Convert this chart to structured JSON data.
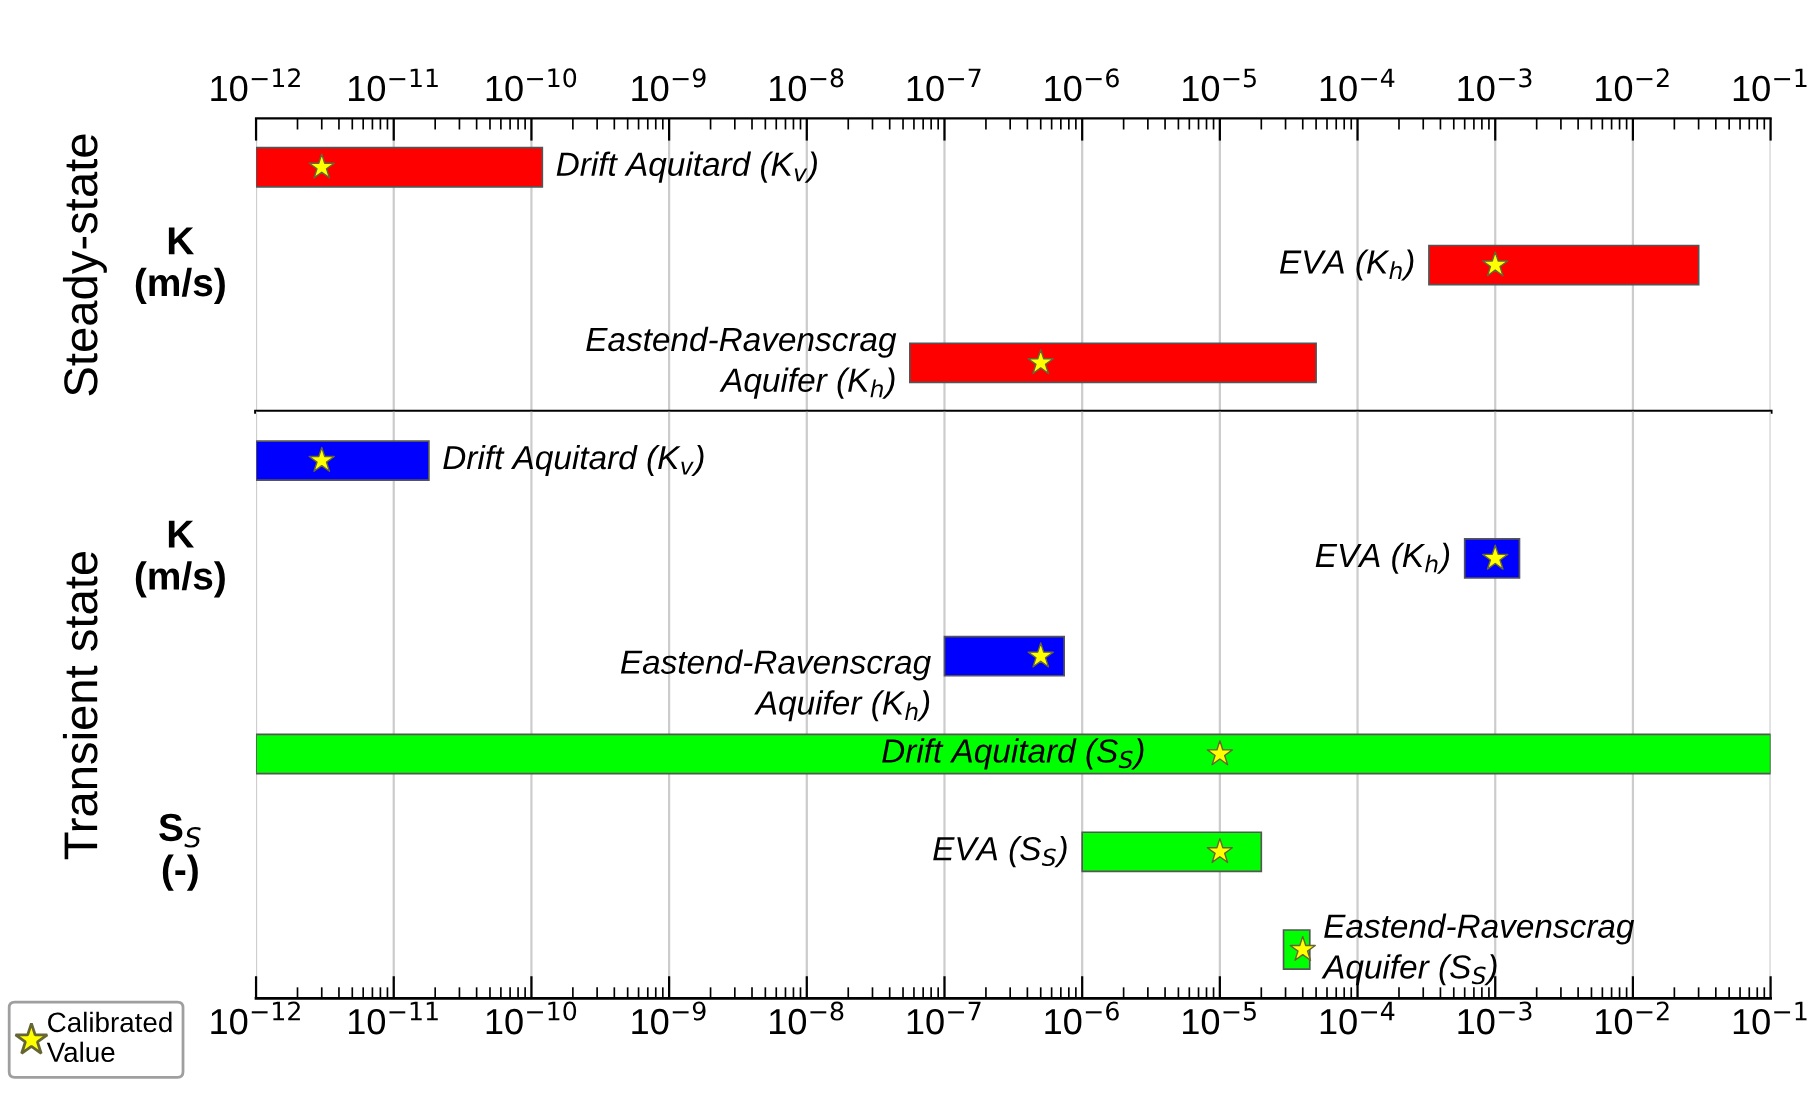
{
  "chart_data": [
    {
      "type": "bar",
      "orientation": "horizontal",
      "log": "x",
      "grid": "x",
      "marker": "star",
      "annotations": [
        "Steady-state",
        "K\n(m/s)"
      ],
      "categories": [
        "Drift Aquitard (K$_{v}$)",
        "EVA (K$_{h}$)",
        "Eastend-Ravenscrag\nAquifer (K$_{h}$)"
      ],
      "series": [
        {
          "type": "bar",
          "color": "#ff0000",
          "base": [
            1e-12,
            0.00033,
            5.6e-08
          ],
          "values": [
            1.19e-10,
            0.0297,
            4.994e-05
          ]
        },
        {
          "type": "scatter",
          "color": "#ffff00",
          "values": [
            3e-12,
            0.001,
            5e-07
          ]
        }
      ],
      "xlim": [
        1e-12,
        0.1
      ],
      "xticks": [
        {
          "value": 1e-12,
          "label": "10$^{−12}$"
        },
        {
          "value": 1e-11,
          "label": "10$^{−11}$"
        },
        {
          "value": 1e-10,
          "label": "10$^{−10}$"
        },
        {
          "value": 1e-09,
          "label": "10$^{−9}$"
        },
        {
          "value": 1e-08,
          "label": "10$^{−8}$"
        },
        {
          "value": 1e-07,
          "label": "10$^{−7}$"
        },
        {
          "value": 1e-06,
          "label": "10$^{−6}$"
        },
        {
          "value": 1e-05,
          "label": "10$^{−5}$"
        },
        {
          "value": 0.0001,
          "label": "10$^{−4}$"
        },
        {
          "value": 0.001,
          "label": "10$^{−3}$"
        },
        {
          "value": 0.01,
          "label": "10$^{−2}$"
        },
        {
          "value": 0.1,
          "label": "10$^{−1}$"
        }
      ]
    },
    {
      "type": "bar",
      "orientation": "horizontal",
      "log": "x",
      "grid": "x",
      "marker": "star",
      "legend": "bottom left",
      "annotations": [
        "Transient state",
        "K\n(m/s)",
        "S$_{S}$\n(-)"
      ],
      "categories": [
        "Drift Aquitard (K$_{v}$)",
        "EVA (K$_{h}$)",
        "Eastend-Ravenscrag\nAquifer (K$_{h}$)",
        "Drift Aquitard (S$_{S}$)",
        "EVA (S$_{S}$)",
        "Eastend-Ravenscrag\nAquifer (S$_{S}$)"
      ],
      "series": [
        {
          "type": "bar",
          "colors": [
            "#0000ff",
            "#0000ff",
            "#0000ff",
            "#00ff00",
            "#00ff00",
            "#00ff00"
          ],
          "base": [
            1e-12,
            0.0006,
            1e-07,
            1e-12,
            1e-06,
            2.9e-05
          ],
          "values": [
            1.7e-11,
            0.0009,
            6.4e-07,
            0.099999999999,
            1.9e-05,
            1.6e-05
          ]
        },
        {
          "type": "scatter",
          "name": "Calibrated\nValue",
          "color": "#ffff00",
          "values": [
            3e-12,
            0.001,
            5e-07,
            1e-05,
            1e-05,
            4e-05
          ]
        }
      ],
      "xlim": [
        1e-12,
        0.1
      ],
      "xticks": [
        {
          "value": 1e-12,
          "label": "10$^{−12}$"
        },
        {
          "value": 1e-11,
          "label": "10$^{−11}$"
        },
        {
          "value": 1e-10,
          "label": "10$^{−10}$"
        },
        {
          "value": 1e-09,
          "label": "10$^{−9}$"
        },
        {
          "value": 1e-08,
          "label": "10$^{−8}$"
        },
        {
          "value": 1e-07,
          "label": "10$^{−7}$"
        },
        {
          "value": 1e-06,
          "label": "10$^{−6}$"
        },
        {
          "value": 1e-05,
          "label": "10$^{−5}$"
        },
        {
          "value": 0.0001,
          "label": "10$^{−4}$"
        },
        {
          "value": 0.001,
          "label": "10$^{−3}$"
        },
        {
          "value": 0.01,
          "label": "10$^{−2}$"
        },
        {
          "value": 0.1,
          "label": "10$^{−1}$"
        }
      ]
    }
  ]
}
